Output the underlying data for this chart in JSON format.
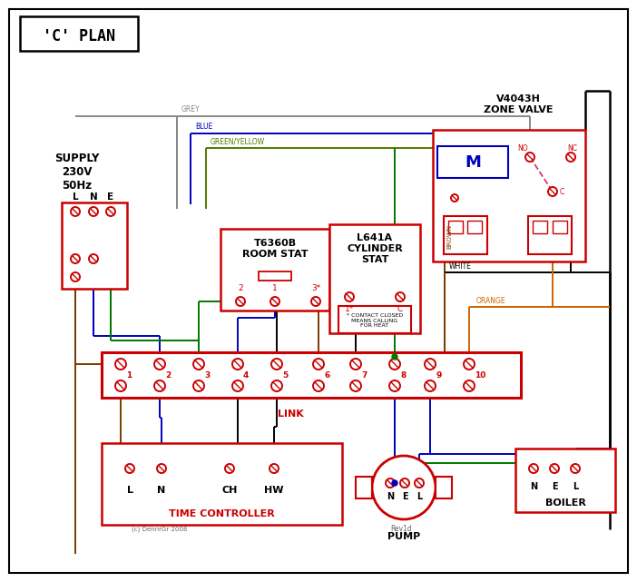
{
  "title": "'C' PLAN",
  "bg_color": "#ffffff",
  "red": "#cc0000",
  "blue": "#0000bb",
  "green": "#007700",
  "grey": "#888888",
  "brown": "#7a3b00",
  "orange": "#cc6600",
  "black": "#000000",
  "gy": "#557700",
  "supply_text": "SUPPLY\n230V\n50Hz",
  "room_stat_title": "T6360B\nROOM STAT",
  "cylinder_stat_title": "L641A\nCYLINDER\nSTAT",
  "zone_valve_title": "V4043H\nZONE VALVE",
  "time_controller_title": "TIME CONTROLLER",
  "pump_title": "PUMP",
  "boiler_title": "BOILER",
  "tc_labels": [
    "L",
    "N",
    "CH",
    "HW"
  ],
  "pump_labels": [
    "N",
    "E",
    "L"
  ],
  "boiler_labels": [
    "N",
    "E",
    "L"
  ],
  "link_text": "LINK",
  "grey_label": "GREY",
  "blue_label": "BLUE",
  "gy_label": "GREEN/YELLOW",
  "brown_label": "BROWN",
  "white_label": "WHITE",
  "orange_label": "ORANGE",
  "contact_note": "* CONTACT CLOSED\nMEANS CALLING\nFOR HEAT",
  "copyright": "(c) DennrGr 2008",
  "revid": "Rev1d"
}
